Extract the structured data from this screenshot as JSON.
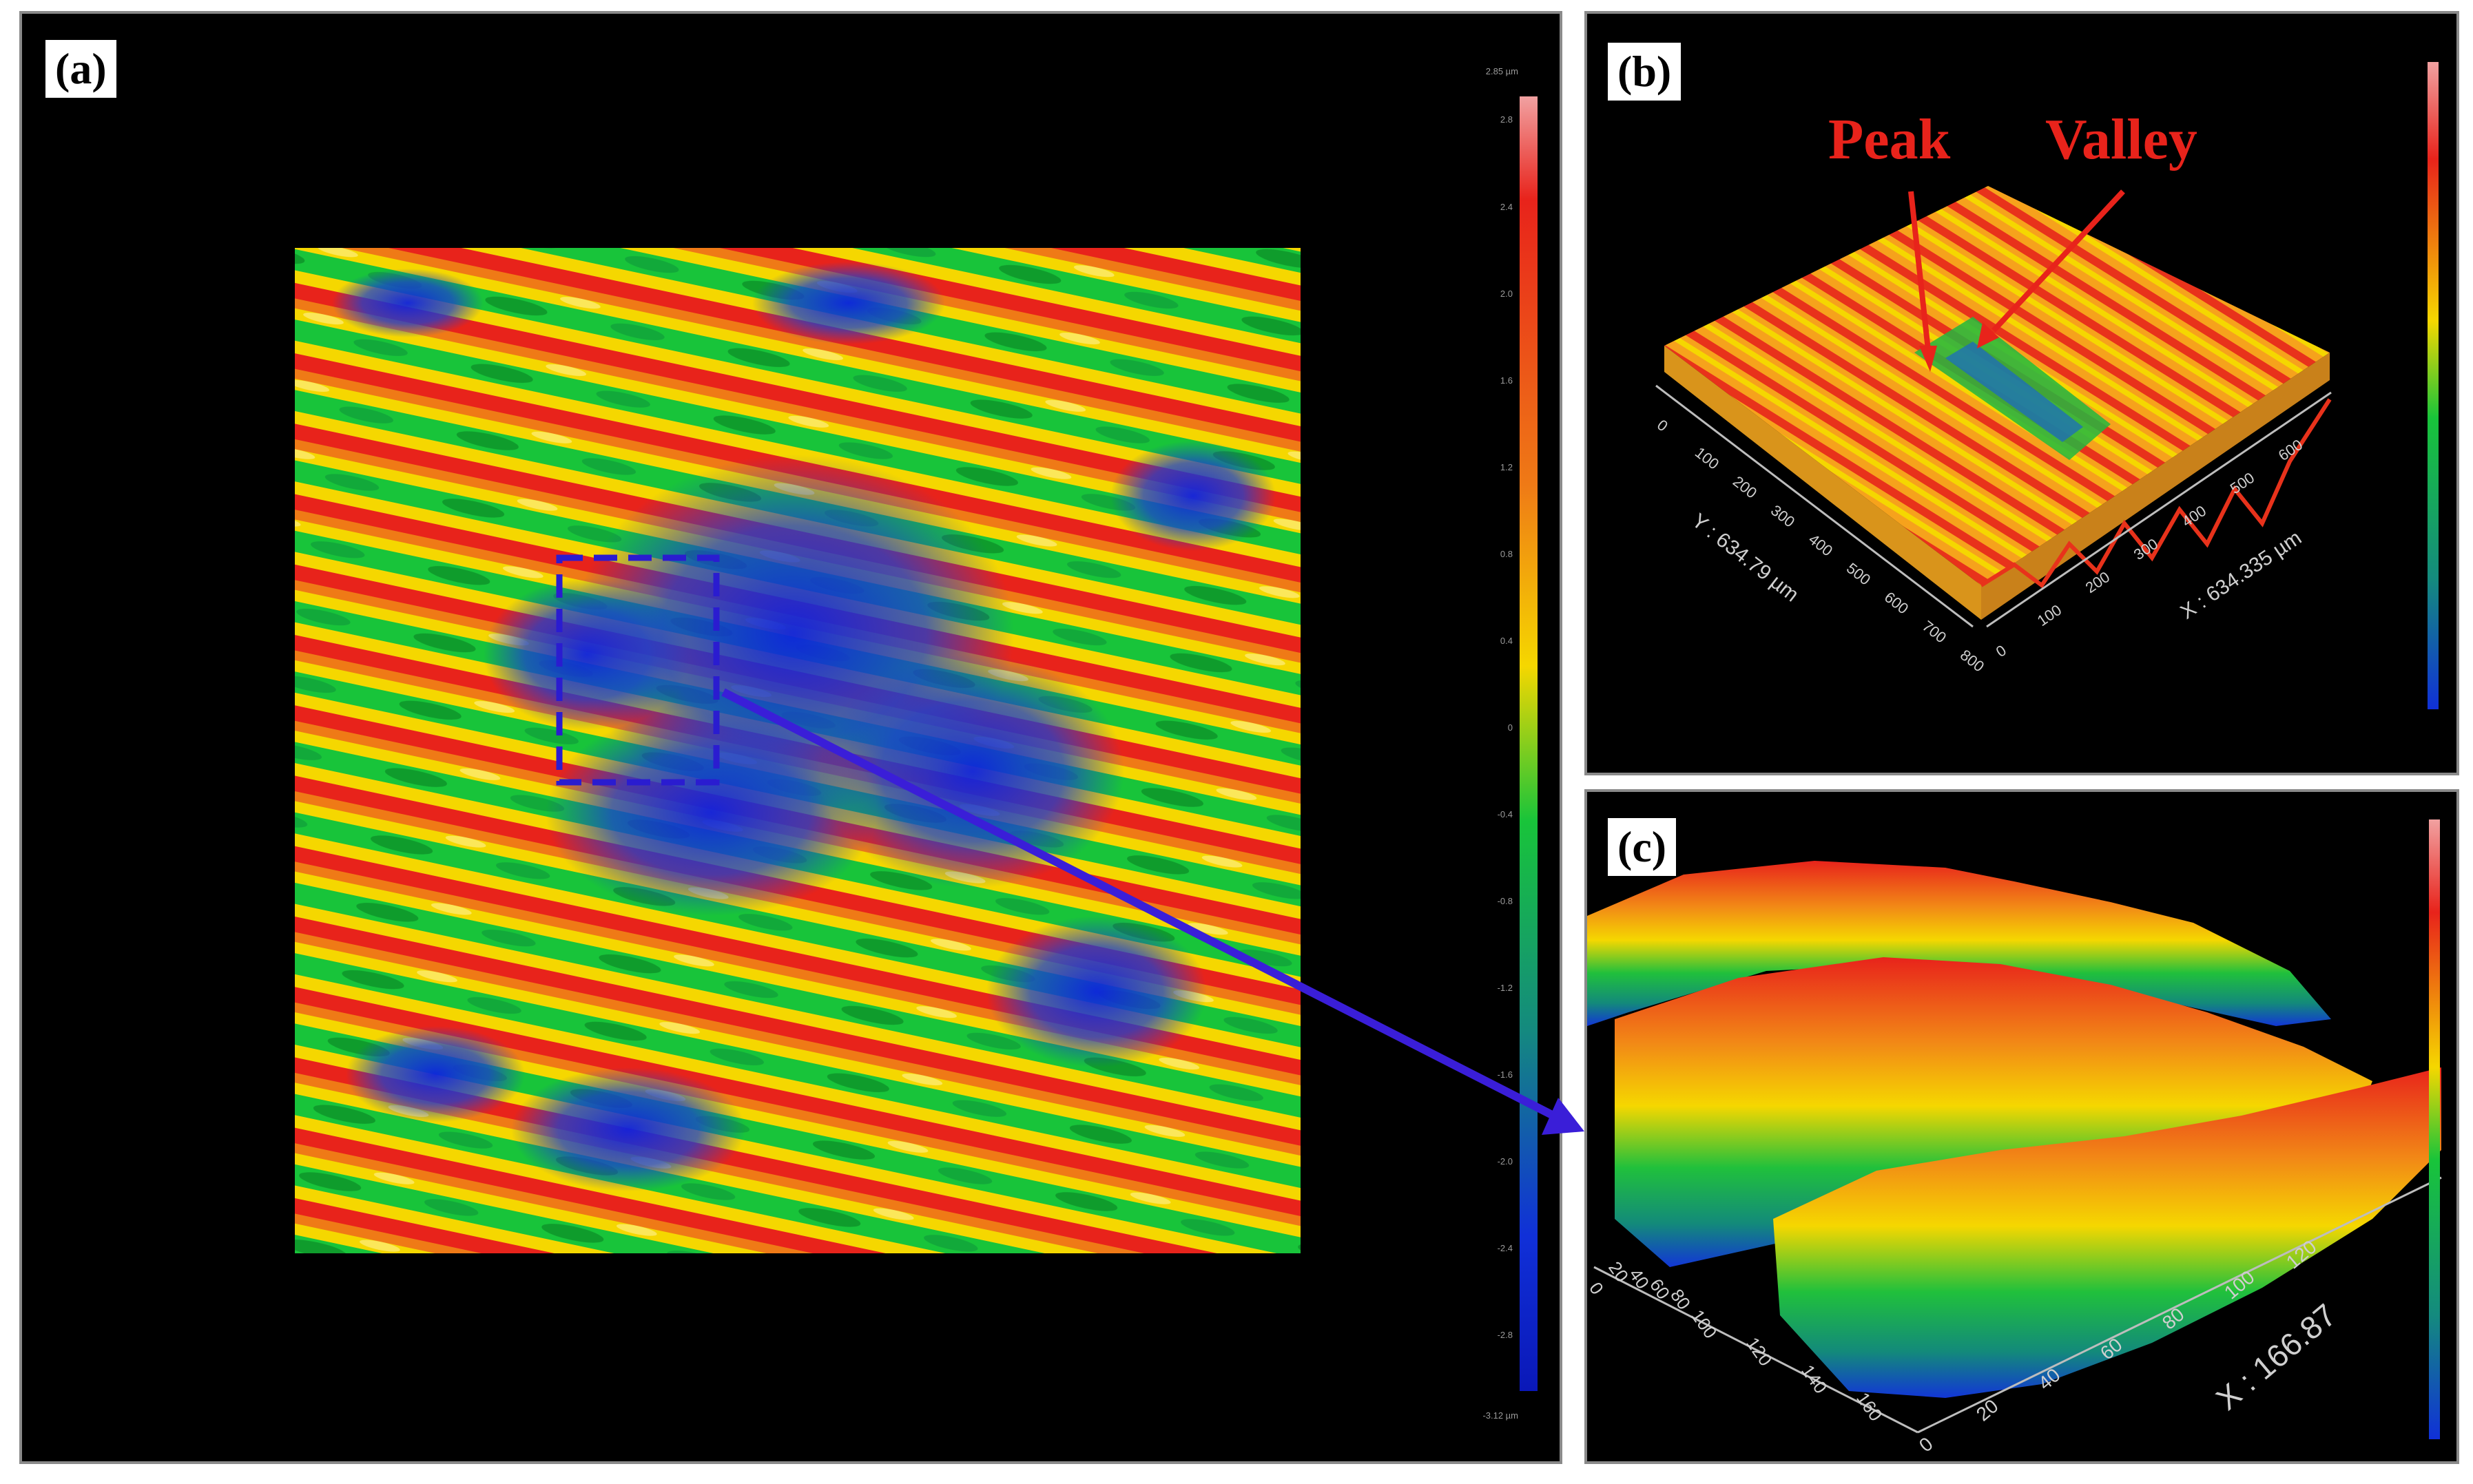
{
  "panels": {
    "a": {
      "label": "(a)",
      "scale_labels": [
        "2.85 µm",
        "2.8",
        "2.4",
        "2.0",
        "1.6",
        "1.2",
        "0.8",
        "0.4",
        "0",
        "-0.4",
        "-0.8",
        "-1.2",
        "-1.6",
        "-2.0",
        "-2.4",
        "-2.8",
        "-3.12 µm"
      ]
    },
    "b": {
      "label": "(b)",
      "annotations": {
        "peak": "Peak",
        "valley": "Valley"
      },
      "y_axis_label": "Y : 634.79 µm",
      "x_axis_label": "X : 634.335 µm",
      "y_ticks": [
        "0",
        "100",
        "200",
        "300",
        "400",
        "500",
        "600",
        "700",
        "800"
      ],
      "x_ticks": [
        "0",
        "100",
        "200",
        "300",
        "400",
        "500",
        "600"
      ]
    },
    "c": {
      "label": "(c)",
      "x_axis_label": "X : 166.87",
      "y_ticks": [
        "0",
        "20",
        "40",
        "60",
        "80",
        "100",
        "120",
        "140",
        "160"
      ],
      "x_ticks": [
        "0",
        "20",
        "40",
        "60",
        "80",
        "100",
        "120"
      ]
    }
  },
  "colors": {
    "high": "#e8231b",
    "mid": "#f5d700",
    "low": "#18c43a",
    "deep": "#1030d8",
    "arrow": "#3a1ed8",
    "annotation": "#e8231b"
  }
}
